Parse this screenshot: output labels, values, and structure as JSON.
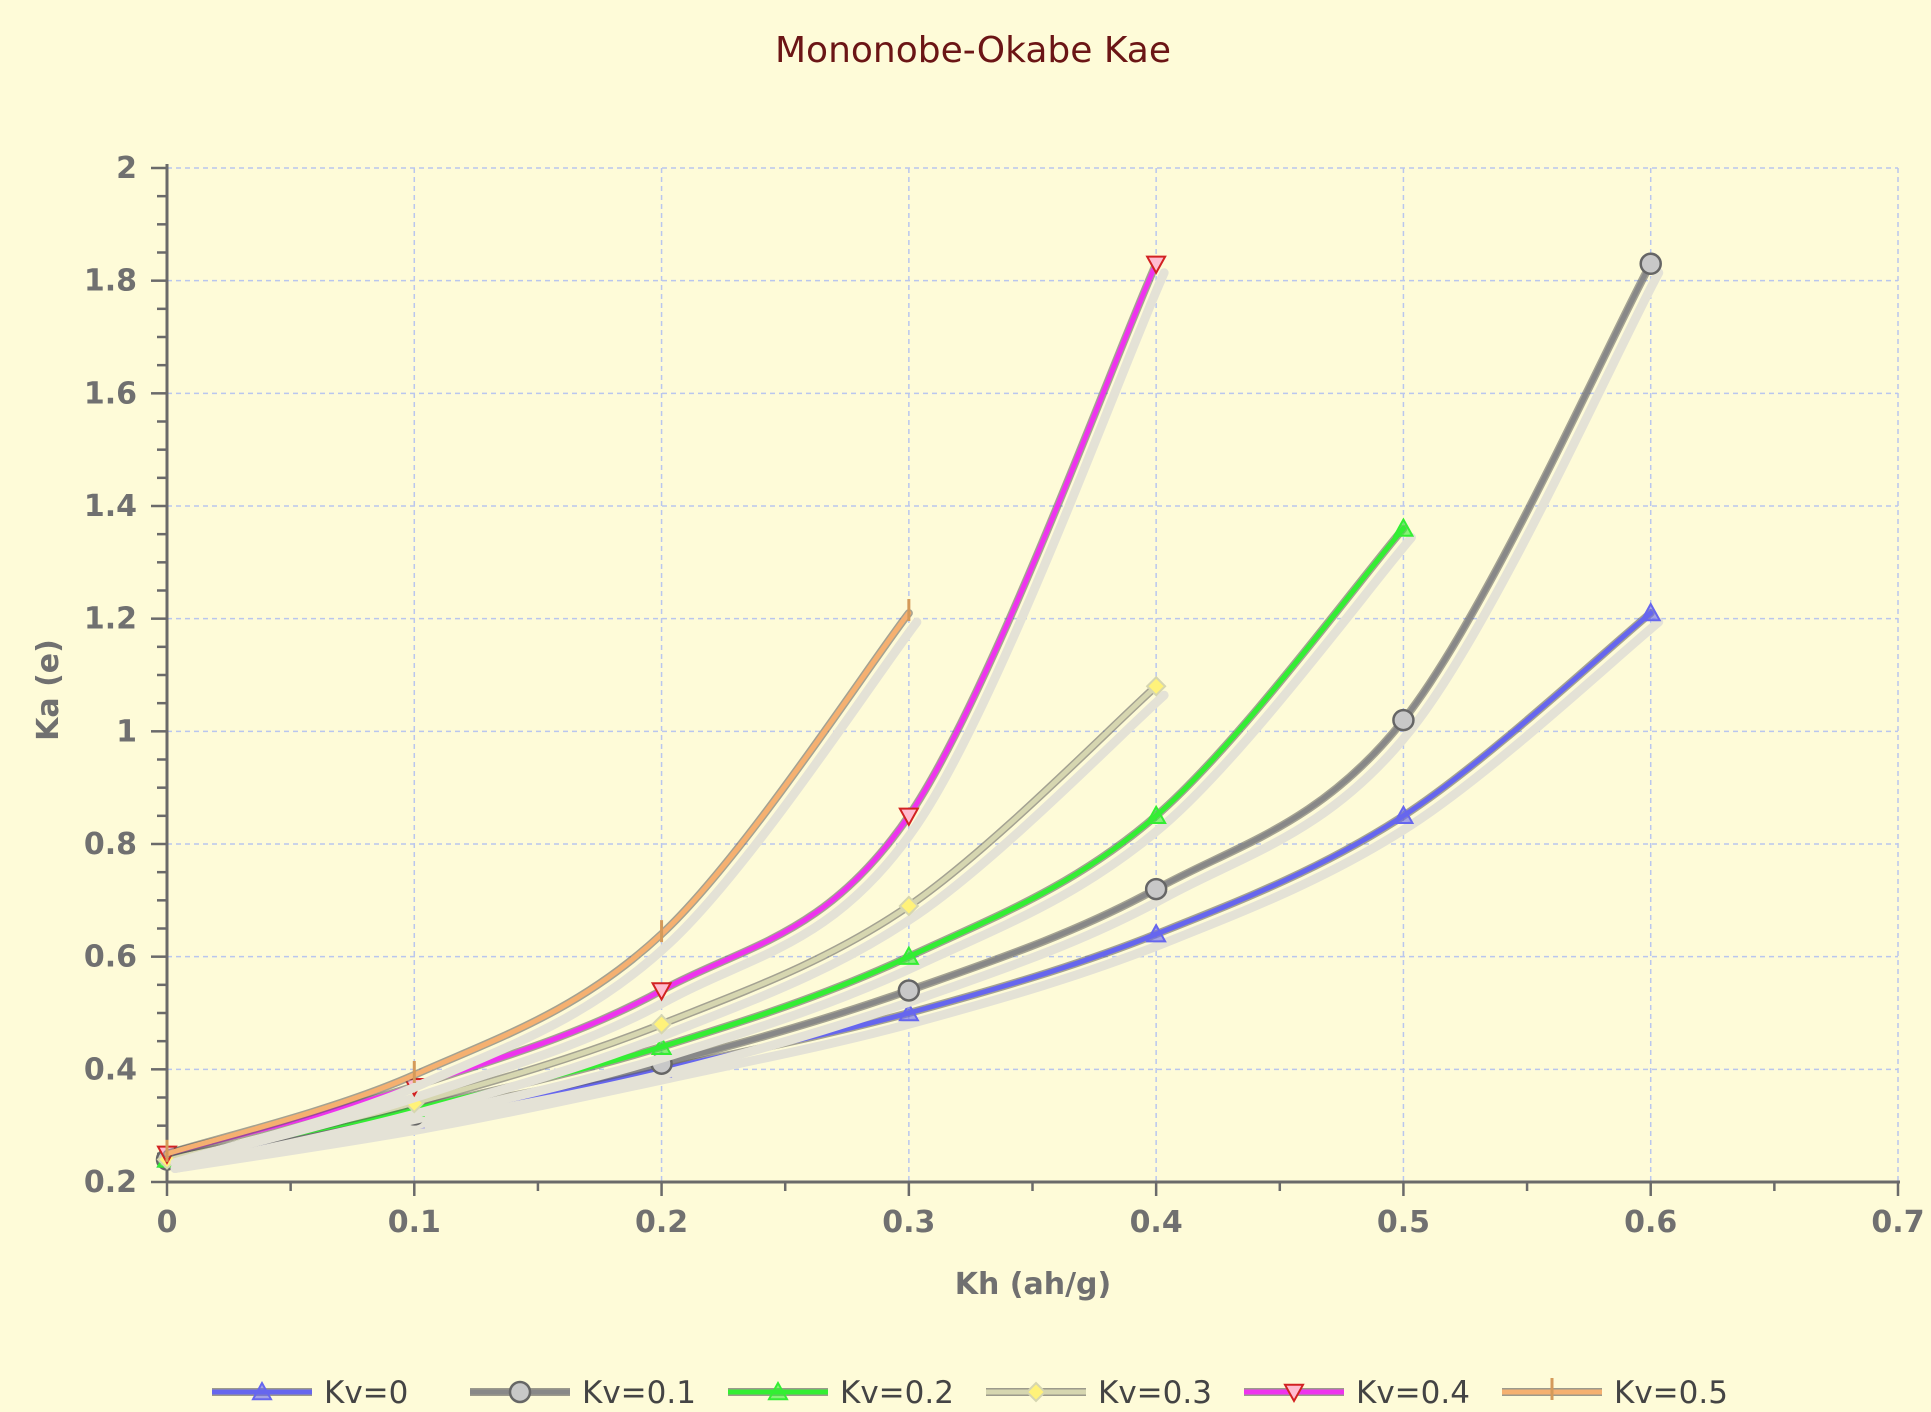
{
  "chart_data": {
    "type": "line",
    "title": "Mononobe-Okabe  Kae",
    "xlabel": "Kh (ah/g)",
    "ylabel": "Ka (e)",
    "xlim": [
      0,
      0.7
    ],
    "ylim": [
      0.2,
      2
    ],
    "x_ticks": [
      "0",
      "0.1",
      "0.2",
      "0.3",
      "0.4",
      "0.5",
      "0.6",
      "0.7"
    ],
    "y_ticks": [
      "0.2",
      "0.4",
      "0.6",
      "0.8",
      "1",
      "1.2",
      "1.4",
      "1.6",
      "1.8",
      "2"
    ],
    "grid": true,
    "legend_position": "bottom",
    "series": [
      {
        "name": "Kv=0",
        "color": "#6666ee",
        "marker": "triangle-up",
        "x": [
          0,
          0.1,
          0.2,
          0.3,
          0.4,
          0.5,
          0.6
        ],
        "y": [
          0.24,
          0.31,
          0.4,
          0.5,
          0.64,
          0.85,
          1.21
        ]
      },
      {
        "name": "Kv=0.1",
        "color": "#888888",
        "marker": "circle",
        "x": [
          0,
          0.1,
          0.2,
          0.3,
          0.4,
          0.5,
          0.6
        ],
        "y": [
          0.24,
          0.32,
          0.41,
          0.54,
          0.72,
          1.02,
          1.83
        ]
      },
      {
        "name": "Kv=0.2",
        "color": "#33ee33",
        "marker": "triangle-up",
        "x": [
          0,
          0.1,
          0.2,
          0.3,
          0.4,
          0.5
        ],
        "y": [
          0.24,
          0.33,
          0.44,
          0.6,
          0.85,
          1.36
        ]
      },
      {
        "name": "Kv=0.3",
        "color": "#d6d6b0",
        "marker": "diamond",
        "x": [
          0,
          0.1,
          0.2,
          0.3,
          0.4
        ],
        "y": [
          0.24,
          0.34,
          0.48,
          0.69,
          1.08
        ]
      },
      {
        "name": "Kv=0.4",
        "color": "#ee33ee",
        "marker": "triangle-down",
        "x": [
          0,
          0.1,
          0.2,
          0.3,
          0.4
        ],
        "y": [
          0.25,
          0.37,
          0.54,
          0.85,
          1.83
        ]
      },
      {
        "name": "Kv=0.5",
        "color": "#f5b070",
        "marker": "tick",
        "x": [
          0,
          0.1,
          0.2,
          0.3
        ],
        "y": [
          0.25,
          0.39,
          0.64,
          1.21
        ]
      }
    ]
  }
}
